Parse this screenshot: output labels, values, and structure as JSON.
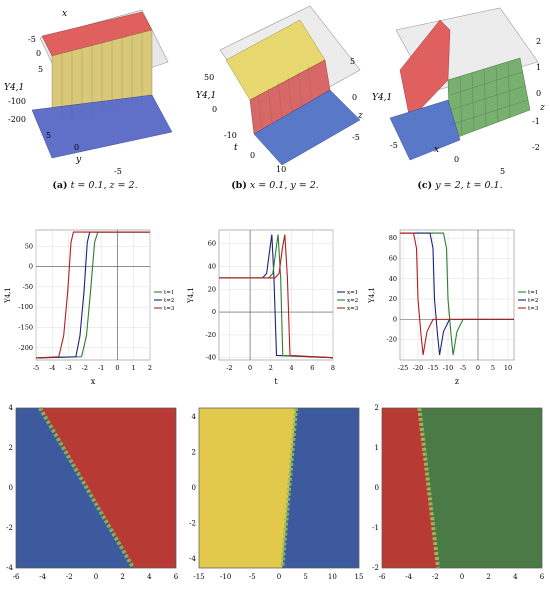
{
  "row3d": [
    {
      "caption": {
        "label": "(a)",
        "text": "t = 0.1, z = 2."
      },
      "axis_labels": {
        "top": "x",
        "side": "Υ4,1",
        "bottom": "y"
      },
      "ticks_top": [
        "-5",
        "0",
        "5"
      ],
      "ticks_left": [
        "-100",
        "-200"
      ],
      "ticks_bottom": [
        "5",
        "0",
        "-5"
      ],
      "colors": {
        "top": "#e06060",
        "side": "#d8c878",
        "floor": "#6070c8"
      }
    },
    {
      "caption": {
        "label": "(b)",
        "text": "x = 0.1, y = 2."
      },
      "axis_labels": {
        "side": "Υ4,1",
        "bottom": "t",
        "right": "z"
      },
      "ticks_left": [
        "50",
        "0"
      ],
      "ticks_bottom": [
        "-10",
        "0",
        "10"
      ],
      "ticks_right": [
        "5",
        "0",
        "-5"
      ],
      "colors": {
        "top": "#e8d870",
        "side": "#d86868",
        "floor": "#5a78c8"
      }
    },
    {
      "caption": {
        "label": "(c)",
        "text": "y = 2, t = 0.1."
      },
      "axis_labels": {
        "side": "Υ4,1",
        "bottom": "x",
        "right": "z"
      },
      "ticks_bottom": [
        "-5",
        "0",
        "5"
      ],
      "ticks_right": [
        "2",
        "1",
        "0",
        "-1",
        "-2"
      ],
      "colors": {
        "left": "#e06060",
        "right": "#78b070",
        "floor": "#5a78c8"
      }
    }
  ],
  "chart_data": [
    {
      "type": "line",
      "xlabel": "x",
      "ylabel": "Υ4,1",
      "xlim": [
        -5,
        2
      ],
      "ylim": [
        -230,
        90
      ],
      "xticks": [
        -5,
        -4,
        -3,
        -2,
        -1,
        0,
        1,
        2
      ],
      "yticks": [
        50,
        0,
        -50,
        -100,
        -150,
        -200
      ],
      "legend_position": "right",
      "series": [
        {
          "name": "t=1",
          "color": "#2e7d32",
          "x": [
            -5,
            -2.2,
            -1.9,
            -1.65,
            -1.4,
            -1.2,
            2
          ],
          "y": [
            -225,
            -222,
            -170,
            -60,
            60,
            85,
            85
          ]
        },
        {
          "name": "t=2",
          "color": "#1a237e",
          "x": [
            -5,
            -2.55,
            -2.3,
            -2.05,
            -1.85,
            -1.7,
            2
          ],
          "y": [
            -225,
            -222,
            -170,
            -60,
            60,
            85,
            85
          ]
        },
        {
          "name": "t=3",
          "color": "#b71c1c",
          "x": [
            -5,
            -3.6,
            -3.3,
            -3.05,
            -2.85,
            -2.7,
            2
          ],
          "y": [
            -225,
            -222,
            -170,
            -60,
            60,
            85,
            85
          ]
        }
      ]
    },
    {
      "type": "line",
      "xlabel": "t",
      "ylabel": "Υ4,1",
      "xlim": [
        -3,
        8
      ],
      "ylim": [
        -42,
        72
      ],
      "xticks": [
        -2,
        0,
        2,
        4,
        6,
        8
      ],
      "yticks": [
        60,
        40,
        20,
        0,
        -20,
        -40
      ],
      "legend_position": "right",
      "series": [
        {
          "name": "x=1",
          "color": "#1a237e",
          "x": [
            -3,
            1.2,
            1.6,
            1.9,
            2.1,
            2.3,
            2.55,
            8
          ],
          "y": [
            30,
            30,
            34,
            55,
            68,
            30,
            -38,
            -40
          ]
        },
        {
          "name": "x=2",
          "color": "#2e7d32",
          "x": [
            -3,
            1.8,
            2.2,
            2.5,
            2.7,
            2.95,
            3.15,
            8
          ],
          "y": [
            30,
            30,
            34,
            55,
            68,
            30,
            -38,
            -40
          ]
        },
        {
          "name": "x=3",
          "color": "#b71c1c",
          "x": [
            -3,
            2.4,
            2.8,
            3.1,
            3.35,
            3.6,
            3.85,
            8
          ],
          "y": [
            30,
            30,
            34,
            55,
            68,
            30,
            -38,
            -40
          ]
        }
      ]
    },
    {
      "type": "line",
      "xlabel": "z",
      "ylabel": "Υ4,1",
      "xlim": [
        -26,
        12
      ],
      "ylim": [
        -40,
        88
      ],
      "xticks": [
        -25,
        -20,
        -15,
        -10,
        -5,
        0,
        5,
        10
      ],
      "yticks": [
        80,
        60,
        40,
        20,
        0,
        -20
      ],
      "legend_position": "right",
      "series": [
        {
          "name": "t=1",
          "color": "#2e7d32",
          "x": [
            -26,
            -11.5,
            -10.5,
            -10,
            -9,
            -8.3,
            -7,
            -5,
            12
          ],
          "y": [
            85,
            85,
            70,
            20,
            -15,
            -35,
            -12,
            0,
            0
          ]
        },
        {
          "name": "t=2",
          "color": "#1a237e",
          "x": [
            -26,
            -16,
            -15,
            -14.5,
            -13.5,
            -12.8,
            -11.5,
            -9.5,
            12
          ],
          "y": [
            85,
            85,
            70,
            20,
            -15,
            -35,
            -12,
            0,
            0
          ]
        },
        {
          "name": "t=3",
          "color": "#b71c1c",
          "x": [
            -26,
            -21.5,
            -20.5,
            -20,
            -19,
            -18.3,
            -17,
            -15,
            12
          ],
          "y": [
            85,
            85,
            70,
            20,
            -15,
            -35,
            -12,
            0,
            0
          ]
        }
      ]
    },
    {
      "type": "heatmap",
      "xlim": [
        -6,
        6
      ],
      "ylim": [
        -4,
        4
      ],
      "xticks": [
        -6,
        -4,
        -2,
        0,
        2,
        4,
        6
      ],
      "yticks": [
        4,
        2,
        0,
        -2,
        -4
      ],
      "colors": {
        "low": "#3d5a9e",
        "high": "#b83a35",
        "front": "#7fbf5a"
      },
      "front_line": [
        [
          -4.2,
          4
        ],
        [
          2.8,
          -4
        ]
      ]
    },
    {
      "type": "heatmap",
      "xlim": [
        -15,
        15
      ],
      "ylim": [
        -4.5,
        4.5
      ],
      "xticks": [
        -15,
        -10,
        -5,
        0,
        5,
        10,
        15
      ],
      "yticks": [
        4,
        2,
        0,
        -2,
        -4
      ],
      "colors": {
        "low": "#e2c94b",
        "high": "#3d5a9e",
        "front": "#8fbf5a"
      },
      "front_line": [
        [
          3.2,
          4.5
        ],
        [
          0.6,
          -4.5
        ]
      ]
    },
    {
      "type": "heatmap",
      "xlim": [
        -6,
        6
      ],
      "ylim": [
        -2,
        2
      ],
      "xticks": [
        -6,
        -4,
        -2,
        0,
        2,
        4,
        6
      ],
      "yticks": [
        2,
        1,
        0,
        -1,
        -2
      ],
      "colors": {
        "low": "#b83a35",
        "high": "#4a7a45",
        "front": "#9fbf5a"
      },
      "front_line": [
        [
          -3.2,
          2
        ],
        [
          -1.8,
          -2
        ]
      ]
    }
  ]
}
